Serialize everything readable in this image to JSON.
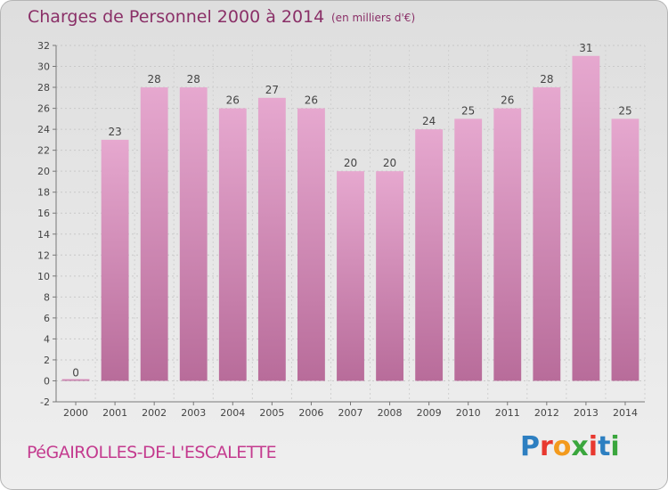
{
  "header": {
    "title": "Charges de Personnel 2000 à 2014",
    "subtitle": "(en milliers d'€)"
  },
  "footer": {
    "commune": "PéGAIROLLES-DE-L'ESCALETTE",
    "logo": "Proxiti",
    "logo_colors": [
      "#2d7fc1",
      "#e8382f",
      "#f39a1d",
      "#3aa63d",
      "#e8382f",
      "#2d7fc1",
      "#3aa63d"
    ]
  },
  "chart_data": {
    "type": "bar",
    "categories": [
      "2000",
      "2001",
      "2002",
      "2003",
      "2004",
      "2005",
      "2006",
      "2007",
      "2008",
      "2009",
      "2010",
      "2011",
      "2012",
      "2013",
      "2014"
    ],
    "values": [
      0,
      23,
      28,
      28,
      26,
      27,
      26,
      20,
      20,
      24,
      25,
      26,
      28,
      31,
      25
    ],
    "ylim": [
      -2,
      32
    ],
    "yticks": [
      -2,
      0,
      2,
      4,
      6,
      8,
      10,
      12,
      14,
      16,
      18,
      20,
      22,
      24,
      26,
      28,
      30,
      32
    ],
    "grid": true,
    "bar_color_top": "#e6a8cf",
    "bar_color_bottom": "#b86c9a"
  }
}
